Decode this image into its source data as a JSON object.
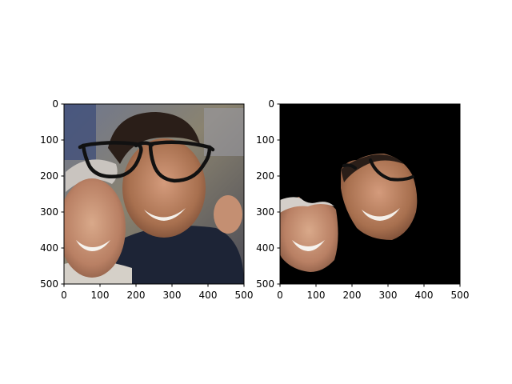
{
  "chart_data": [
    {
      "type": "image",
      "title": "",
      "xlabel": "",
      "ylabel": "",
      "xlim": [
        0,
        500
      ],
      "ylim": [
        500,
        0
      ],
      "xticks": [
        "0",
        "100",
        "200",
        "300",
        "400",
        "500"
      ],
      "yticks": [
        "0",
        "100",
        "200",
        "300",
        "400",
        "500"
      ],
      "content": "photo of two smiling men with a drawn pair of black glasses overlay"
    },
    {
      "type": "image",
      "title": "",
      "xlabel": "",
      "ylabel": "",
      "xlim": [
        0,
        500
      ],
      "ylim": [
        500,
        0
      ],
      "xticks": [
        "0",
        "100",
        "200",
        "300",
        "400",
        "500"
      ],
      "yticks": [
        "0",
        "100",
        "200",
        "300",
        "400",
        "500"
      ],
      "content": "masked version on black background showing only the two faces and part of the glasses"
    }
  ],
  "colors": {
    "background": "#ffffff",
    "mask_background": "#000000",
    "axis": "#000000",
    "glasses": "#111111"
  }
}
